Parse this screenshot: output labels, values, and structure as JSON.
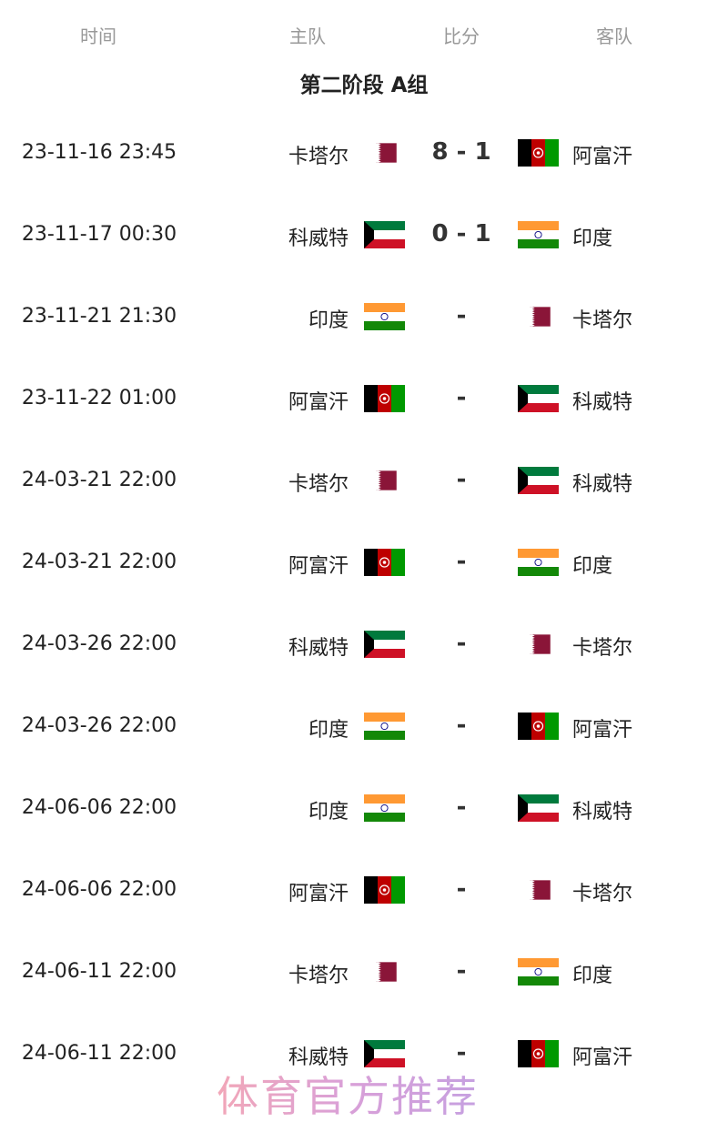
{
  "headers": {
    "time": "时间",
    "home": "主队",
    "score": "比分",
    "away": "客队"
  },
  "group_title": "第二阶段 A组",
  "flags": {
    "卡塔尔": "qatar",
    "阿富汗": "afghanistan",
    "科威特": "kuwait",
    "印度": "india"
  },
  "matches": [
    {
      "time": "23-11-16 23:45",
      "home": "卡塔尔",
      "score": "8 - 1",
      "away": "阿富汗"
    },
    {
      "time": "23-11-17 00:30",
      "home": "科威特",
      "score": "0 - 1",
      "away": "印度"
    },
    {
      "time": "23-11-21 21:30",
      "home": "印度",
      "score": "-",
      "away": "卡塔尔"
    },
    {
      "time": "23-11-22 01:00",
      "home": "阿富汗",
      "score": "-",
      "away": "科威特"
    },
    {
      "time": "24-03-21 22:00",
      "home": "卡塔尔",
      "score": "-",
      "away": "科威特"
    },
    {
      "time": "24-03-21 22:00",
      "home": "阿富汗",
      "score": "-",
      "away": "印度"
    },
    {
      "time": "24-03-26 22:00",
      "home": "科威特",
      "score": "-",
      "away": "卡塔尔"
    },
    {
      "time": "24-03-26 22:00",
      "home": "印度",
      "score": "-",
      "away": "阿富汗"
    },
    {
      "time": "24-06-06 22:00",
      "home": "印度",
      "score": "-",
      "away": "科威特"
    },
    {
      "time": "24-06-06 22:00",
      "home": "阿富汗",
      "score": "-",
      "away": "卡塔尔"
    },
    {
      "time": "24-06-11 22:00",
      "home": "卡塔尔",
      "score": "-",
      "away": "印度"
    },
    {
      "time": "24-06-11 22:00",
      "home": "科威特",
      "score": "-",
      "away": "阿富汗"
    }
  ],
  "watermark": "体育官方推荐"
}
